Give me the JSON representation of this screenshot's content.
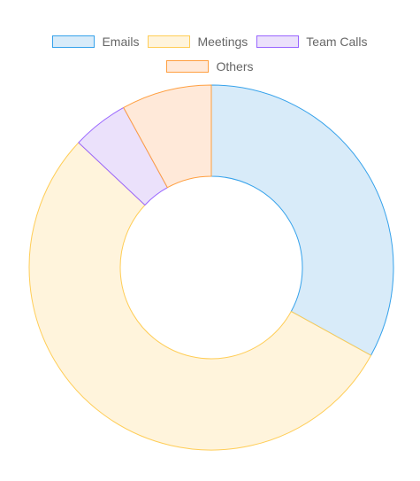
{
  "chart_data": {
    "type": "pie",
    "variant": "doughnut",
    "categories": [
      "Emails",
      "Meetings",
      "Team Calls",
      "Others"
    ],
    "values": [
      33,
      54,
      5,
      8
    ],
    "colors": {
      "fill": [
        "#d8ebf9",
        "#fff4dc",
        "#ebe1fb",
        "#ffe9d9"
      ],
      "border": [
        "#36a2eb",
        "#ffcd56",
        "#9966ff",
        "#ff9f40"
      ]
    },
    "legend_position": "top"
  }
}
